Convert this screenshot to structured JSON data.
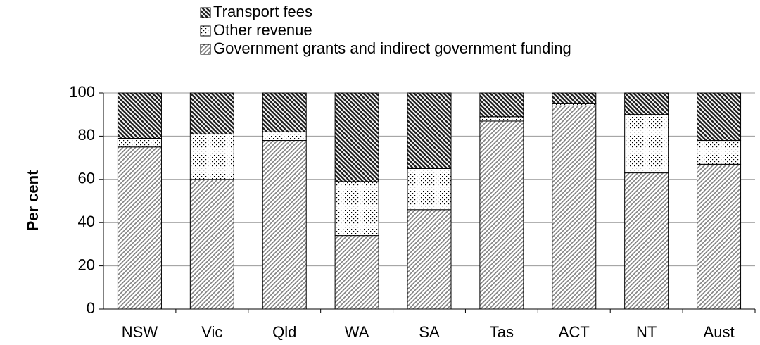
{
  "chart_data": {
    "type": "stacked_bar",
    "y_label": "Per cent",
    "categories": [
      "NSW",
      "Vic",
      "Qld",
      "WA",
      "SA",
      "Tas",
      "ACT",
      "NT",
      "Aust"
    ],
    "series": [
      {
        "name": "Government grants and indirect government funding",
        "color": "#808080",
        "values": [
          75,
          60,
          78,
          34,
          46,
          87,
          94,
          63,
          67
        ]
      },
      {
        "name": "Other revenue",
        "color": "#000000",
        "values": [
          4,
          21,
          4,
          25,
          19,
          2,
          1,
          27,
          11
        ]
      },
      {
        "name": "Transport fees",
        "color": "#222222",
        "values": [
          21,
          19,
          18,
          41,
          35,
          11,
          5,
          10,
          22
        ]
      }
    ],
    "ylim": [
      0,
      100
    ],
    "yticks": [
      0,
      20,
      40,
      60,
      80,
      100
    ],
    "grid": true
  }
}
